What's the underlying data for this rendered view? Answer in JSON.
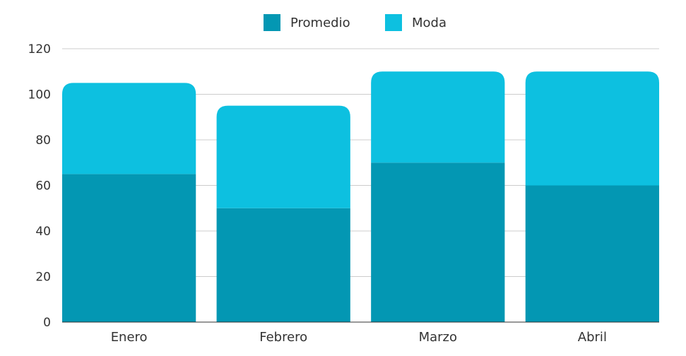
{
  "chart_data": {
    "type": "bar",
    "stacked": true,
    "categories": [
      "Enero",
      "Febrero",
      "Marzo",
      "Abril"
    ],
    "series": [
      {
        "name": "Promedio",
        "values": [
          65,
          50,
          70,
          60
        ],
        "color": "#0397b3"
      },
      {
        "name": "Moda",
        "values": [
          40,
          45,
          40,
          50
        ],
        "color": "#0dc0e0"
      }
    ],
    "yticks": [
      0,
      20,
      40,
      60,
      80,
      100,
      120
    ],
    "ylim": [
      0,
      120
    ],
    "grid": true,
    "legend_position": "top-center",
    "title": "",
    "xlabel": "",
    "ylabel": ""
  }
}
